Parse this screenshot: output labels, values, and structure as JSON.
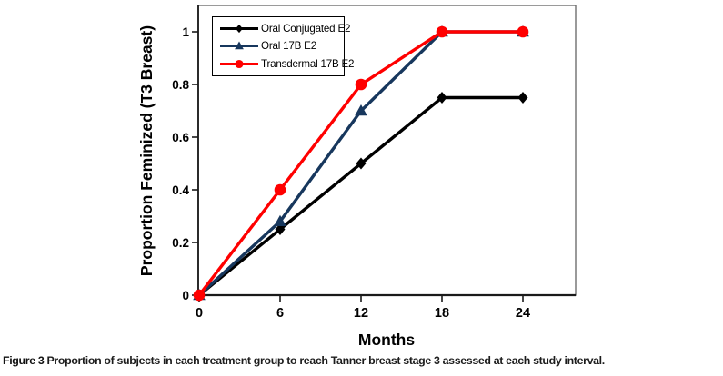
{
  "caption": {
    "label": "Figure 3",
    "text": " Proportion of subjects in each treatment group to reach Tanner breast stage 3 assessed at each study interval."
  },
  "chart_data": {
    "type": "line",
    "title": "",
    "xlabel": "Months",
    "ylabel": "Proportion Feminized (T3 Breast)",
    "x": [
      0,
      6,
      12,
      18,
      24
    ],
    "series": [
      {
        "name": "Oral Conjugated E2",
        "marker": "diamond",
        "color": "#000000",
        "values": [
          0,
          0.25,
          0.5,
          0.75,
          0.75
        ]
      },
      {
        "name": "Oral 17B E2",
        "marker": "triangle",
        "color": "#17375D",
        "values": [
          0,
          0.28,
          0.7,
          1,
          1
        ]
      },
      {
        "name": "Transdermal 17B E2",
        "marker": "circle",
        "color": "#FF0000",
        "values": [
          0,
          0.4,
          0.8,
          1,
          1
        ]
      }
    ],
    "xlim": [
      0,
      28
    ],
    "ylim": [
      0,
      1.1
    ],
    "x_ticks": [
      0,
      6,
      12,
      18,
      24
    ],
    "x_tick_labels": [
      "0",
      "6",
      "12",
      "18",
      "24"
    ],
    "y_ticks": [
      0,
      0.2,
      0.4,
      0.6,
      0.8,
      1
    ],
    "y_tick_labels": [
      "0",
      "0.2",
      "0.4",
      "0.6",
      "0.8",
      "1"
    ],
    "grid": false,
    "legend_position": "top-left",
    "frame_color": "#6e6e6e",
    "axis_color": "#1a1a1a",
    "tick_label_color": "#000000"
  }
}
